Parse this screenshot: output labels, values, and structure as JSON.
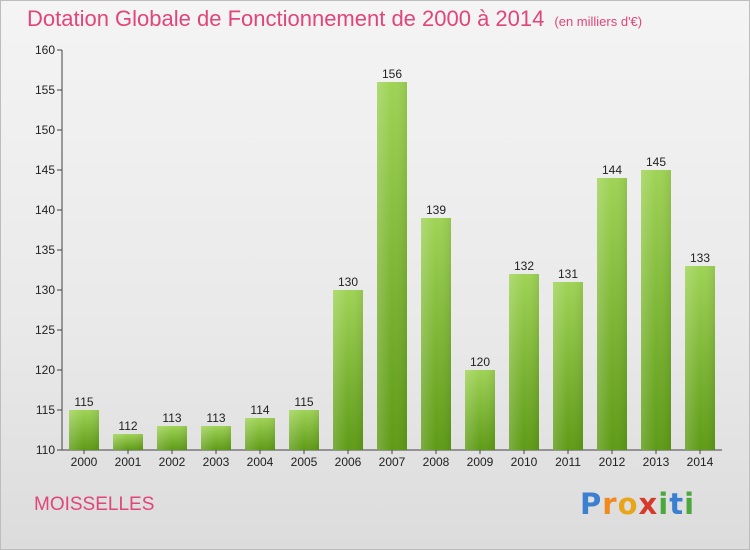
{
  "header": {
    "title": "Dotation Globale de Fonctionnement de 2000 à 2014",
    "unit": "(en milliers d'€)"
  },
  "footer": {
    "commune": "MOISSELLES",
    "logo_letters": [
      "P",
      "r",
      "o",
      "x",
      "i",
      "t",
      "i"
    ],
    "logo_colors": [
      "#3a7fd0",
      "#f08a1e",
      "#e8a51a",
      "#d63a2a",
      "#4aa83c",
      "#3a7fd0",
      "#4aa83c"
    ]
  },
  "chart_data": {
    "type": "bar",
    "title": "Dotation Globale de Fonctionnement de 2000 à 2014",
    "subtitle": "(en milliers d'€)",
    "categories": [
      "2000",
      "2001",
      "2002",
      "2003",
      "2004",
      "2005",
      "2006",
      "2007",
      "2008",
      "2009",
      "2010",
      "2011",
      "2012",
      "2013",
      "2014"
    ],
    "values": [
      115,
      112,
      113,
      113,
      114,
      115,
      130,
      156,
      139,
      120,
      132,
      131,
      144,
      145,
      133
    ],
    "ylim": [
      110,
      160
    ],
    "yticks": [
      110,
      115,
      120,
      125,
      130,
      135,
      140,
      145,
      150,
      155,
      160
    ],
    "xlabel": "",
    "ylabel": "",
    "grid": false,
    "bar_color_top": "#9fd356",
    "bar_color_bottom": "#5e9b16"
  }
}
